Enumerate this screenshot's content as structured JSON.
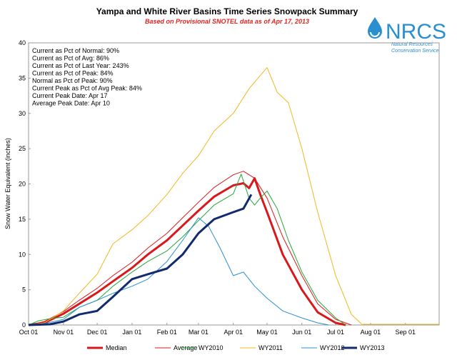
{
  "chart_data": {
    "type": "line",
    "title": "Yampa and White River Basins Time Series Snowpack Summary",
    "subtitle": "Based on Provisional SNOTEL data as of Apr 17, 2013",
    "ylabel": "Snow Water Equivalent (inches)",
    "xlabel": "",
    "ylim": [
      0,
      40
    ],
    "yticks": [
      0,
      5,
      10,
      15,
      20,
      25,
      30,
      35,
      40
    ],
    "xlim": [
      "Oct 01",
      "Oct 01 (next)"
    ],
    "xticks": [
      "Oct 01",
      "Nov 01",
      "Dec 01",
      "Jan 01",
      "Feb 01",
      "Mar 01",
      "Apr 01",
      "May 01",
      "Jun 01",
      "Jul 01",
      "Aug 01",
      "Sep 01"
    ],
    "grid": false,
    "legend_position": "bottom",
    "annotations": [
      "Current as Pct of Normal: 90%",
      "Current as Pct of Avg: 86%",
      "Current as Pct of Last Year: 243%",
      "Current as Pct of Peak: 84%",
      "Normal as Pct of Peak: 90%",
      "Current Peak as Pct of Avg Peak: 84%",
      "Current Peak Date: Apr 17",
      "Average Peak Date: Apr 10"
    ],
    "series": [
      {
        "name": "Median",
        "color": "#d9181c",
        "width": 3,
        "points": [
          [
            "Oct 01",
            0
          ],
          [
            "Oct 15",
            0.3
          ],
          [
            "Nov 01",
            1.6
          ],
          [
            "Nov 15",
            3.0
          ],
          [
            "Dec 01",
            4.6
          ],
          [
            "Dec 15",
            6.2
          ],
          [
            "Jan 01",
            8.1
          ],
          [
            "Jan 15",
            10.0
          ],
          [
            "Feb 01",
            12.0
          ],
          [
            "Feb 15",
            14.1
          ],
          [
            "Mar 01",
            16.2
          ],
          [
            "Mar 15",
            18.2
          ],
          [
            "Apr 01",
            19.8
          ],
          [
            "Apr 10",
            20.1
          ],
          [
            "Apr 15",
            19.4
          ],
          [
            "Apr 20",
            20.8
          ],
          [
            "Apr 25",
            18.5
          ],
          [
            "May 01",
            16.0
          ],
          [
            "May 15",
            10.0
          ],
          [
            "Jun 01",
            5.0
          ],
          [
            "Jun 15",
            1.8
          ],
          [
            "Jul 01",
            0.3
          ],
          [
            "Jul 10",
            0
          ]
        ]
      },
      {
        "name": "Average",
        "color": "#d9181c",
        "width": 1,
        "points": [
          [
            "Oct 01",
            0
          ],
          [
            "Oct 15",
            0.5
          ],
          [
            "Nov 01",
            1.9
          ],
          [
            "Nov 15",
            3.5
          ],
          [
            "Dec 01",
            5.2
          ],
          [
            "Dec 15",
            7.0
          ],
          [
            "Jan 01",
            8.9
          ],
          [
            "Jan 15",
            10.9
          ],
          [
            "Feb 01",
            13.0
          ],
          [
            "Feb 15",
            15.2
          ],
          [
            "Mar 01",
            17.4
          ],
          [
            "Mar 15",
            19.5
          ],
          [
            "Apr 01",
            21.3
          ],
          [
            "Apr 10",
            21.8
          ],
          [
            "Apr 20",
            20.8
          ],
          [
            "May 01",
            18.0
          ],
          [
            "May 15",
            12.5
          ],
          [
            "Jun 01",
            7.0
          ],
          [
            "Jun 15",
            3.0
          ],
          [
            "Jul 01",
            0.8
          ],
          [
            "Jul 15",
            0
          ]
        ]
      },
      {
        "name": "WY2010",
        "color": "#27a73a",
        "width": 1,
        "points": [
          [
            "Oct 01",
            0
          ],
          [
            "Oct 10",
            0.6
          ],
          [
            "Oct 20",
            0.9
          ],
          [
            "Nov 01",
            1.1
          ],
          [
            "Nov 15",
            2.5
          ],
          [
            "Dec 01",
            3.5
          ],
          [
            "Dec 15",
            5.5
          ],
          [
            "Jan 01",
            7.5
          ],
          [
            "Jan 15",
            9.0
          ],
          [
            "Feb 01",
            10.5
          ],
          [
            "Feb 15",
            12.5
          ],
          [
            "Mar 01",
            14.8
          ],
          [
            "Mar 15",
            17.0
          ],
          [
            "Apr 01",
            18.6
          ],
          [
            "Apr 08",
            21.4
          ],
          [
            "Apr 15",
            18.0
          ],
          [
            "Apr 20",
            17.0
          ],
          [
            "Apr 25",
            18.0
          ],
          [
            "May 01",
            19.0
          ],
          [
            "May 10",
            16.5
          ],
          [
            "May 20",
            12.0
          ],
          [
            "Jun 01",
            7.5
          ],
          [
            "Jun 15",
            3.5
          ],
          [
            "Jul 01",
            1.0
          ],
          [
            "Jul 10",
            0
          ]
        ]
      },
      {
        "name": "WY2011",
        "color": "#f3b71f",
        "width": 1,
        "points": [
          [
            "Oct 01",
            0
          ],
          [
            "Oct 15",
            0.3
          ],
          [
            "Nov 01",
            2.0
          ],
          [
            "Nov 15",
            4.5
          ],
          [
            "Dec 01",
            7.2
          ],
          [
            "Dec 15",
            11.5
          ],
          [
            "Jan 01",
            13.5
          ],
          [
            "Jan 15",
            15.5
          ],
          [
            "Feb 01",
            18.5
          ],
          [
            "Feb 15",
            21.5
          ],
          [
            "Mar 01",
            24.0
          ],
          [
            "Mar 15",
            27.5
          ],
          [
            "Apr 01",
            30.0
          ],
          [
            "Apr 15",
            33.5
          ],
          [
            "May 01",
            36.5
          ],
          [
            "May 10",
            33.0
          ],
          [
            "May 20",
            31.5
          ],
          [
            "Jun 01",
            25.0
          ],
          [
            "Jun 15",
            16.0
          ],
          [
            "Jul 01",
            7.0
          ],
          [
            "Jul 15",
            1.5
          ],
          [
            "Jul 25",
            0
          ]
        ]
      },
      {
        "name": "WY2012",
        "color": "#2a8fd0",
        "width": 1,
        "points": [
          [
            "Oct 01",
            0
          ],
          [
            "Oct 15",
            0.2
          ],
          [
            "Nov 01",
            0.8
          ],
          [
            "Nov 15",
            2.5
          ],
          [
            "Dec 01",
            3.5
          ],
          [
            "Dec 15",
            4.5
          ],
          [
            "Jan 01",
            5.5
          ],
          [
            "Jan 15",
            6.5
          ],
          [
            "Feb 01",
            9.0
          ],
          [
            "Feb 15",
            12.0
          ],
          [
            "Mar 01",
            15.2
          ],
          [
            "Mar 10",
            14.0
          ],
          [
            "Mar 20",
            11.0
          ],
          [
            "Apr 01",
            7.0
          ],
          [
            "Apr 10",
            7.5
          ],
          [
            "Apr 20",
            5.5
          ],
          [
            "May 01",
            3.8
          ],
          [
            "May 15",
            2.0
          ],
          [
            "Jun 01",
            1.0
          ],
          [
            "Jun 15",
            0.3
          ],
          [
            "Jun 25",
            0
          ]
        ]
      },
      {
        "name": "WY2013",
        "color": "#122a6e",
        "width": 3,
        "points": [
          [
            "Oct 01",
            0
          ],
          [
            "Oct 20",
            0.1
          ],
          [
            "Nov 01",
            0.5
          ],
          [
            "Nov 15",
            1.5
          ],
          [
            "Dec 01",
            2.0
          ],
          [
            "Dec 15",
            4.0
          ],
          [
            "Jan 01",
            6.5
          ],
          [
            "Jan 15",
            7.2
          ],
          [
            "Feb 01",
            8.0
          ],
          [
            "Feb 15",
            10.0
          ],
          [
            "Mar 01",
            13.0
          ],
          [
            "Mar 15",
            15.0
          ],
          [
            "Apr 01",
            16.0
          ],
          [
            "Apr 10",
            16.5
          ],
          [
            "Apr 17",
            18.5
          ]
        ]
      }
    ]
  },
  "logo": {
    "text": "NRCS",
    "line1": "Natural Resources",
    "line2": "Conservation Service"
  }
}
